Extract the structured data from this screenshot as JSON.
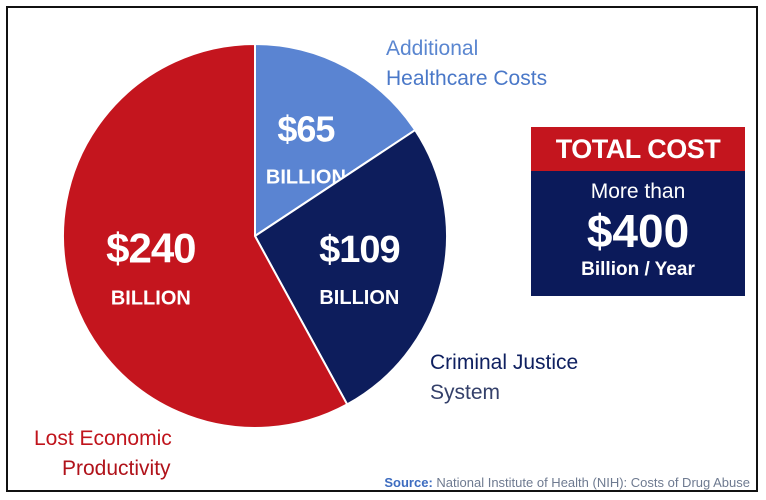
{
  "chart_data": {
    "type": "pie",
    "categories": [
      "Lost Economic Productivity",
      "Criminal Justice System",
      "Additional Healthcare Costs"
    ],
    "values": [
      240,
      109,
      65
    ],
    "value_labels": [
      "$240",
      "$109",
      "$65"
    ],
    "unit_label": "BILLION",
    "colors": [
      "#c4151e",
      "#0d1d5c",
      "#5a84d2"
    ],
    "legend": "none"
  },
  "labels": {
    "healthcare": [
      "Additional",
      "Healthcare Costs"
    ],
    "justice": [
      "Criminal Justice",
      "System"
    ],
    "economic": [
      "Lost Economic",
      "Productivity"
    ]
  },
  "total": {
    "header": "TOTAL COST",
    "more_than": "More than",
    "amount": "$400",
    "unit": "Billion / Year",
    "header_color": "#c4151e",
    "body_color": "#0b1a5a"
  },
  "source": {
    "label": "Source:",
    "text": "National Institute of Health (NIH): Costs of Drug Abuse"
  }
}
